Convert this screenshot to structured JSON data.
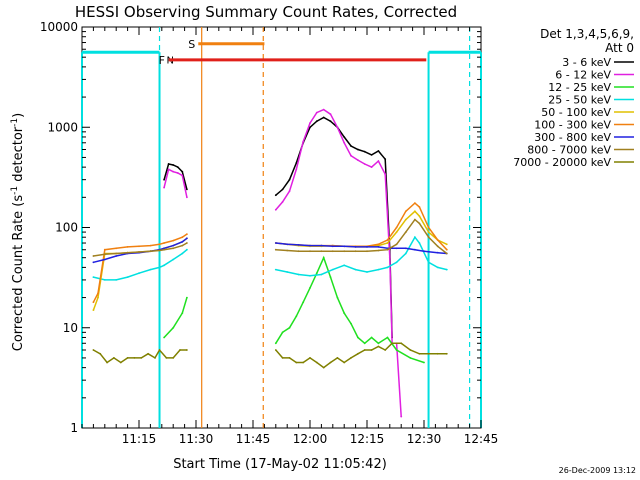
{
  "chart_data": {
    "type": "line",
    "title": "HESSI Observing Summary Count Rates, Corrected",
    "xlabel": "Start Time (17-May-02 11:05:42)",
    "ylabel": "Corrected Count Rate (s⁻¹ detector⁻¹)",
    "ylabel_main": "Corrected Count Rate (s",
    "ylabel_sup1": "-1",
    "ylabel_mid": " detector",
    "ylabel_sup2": "-1",
    "ylabel_end": ")",
    "y_scale": "log",
    "ylim": [
      1,
      10000
    ],
    "xlim_minutes": [
      11.0,
      12.75
    ],
    "x_ticks": [
      {
        "label": "11:15",
        "minutes": 11.25
      },
      {
        "label": "11:30",
        "minutes": 11.5
      },
      {
        "label": "11:45",
        "minutes": 11.75
      },
      {
        "label": "12:00",
        "minutes": 12.0
      },
      {
        "label": "12:15",
        "minutes": 12.25
      },
      {
        "label": "12:30",
        "minutes": 12.5
      },
      {
        "label": "12:45",
        "minutes": 12.75
      }
    ],
    "y_ticks": [
      {
        "label": "1",
        "value": 1
      },
      {
        "label": "10",
        "value": 10
      },
      {
        "label": "100",
        "value": 100
      },
      {
        "label": "1000",
        "value": 1000
      },
      {
        "label": "10000",
        "value": 10000
      }
    ],
    "legend_title_1": "Det 1,3,4,5,6,9,",
    "legend_title_2": "Att 0",
    "legend_position": "right",
    "timestamp": "26-Dec-2009 13:12",
    "flags": [
      {
        "label": "F",
        "color": "#e0201a",
        "x_start": 11.38,
        "x_end": 12.51,
        "level": 4700
      },
      {
        "label": "S",
        "color": "#f08010",
        "x_start": 11.51,
        "x_end": 11.8,
        "level": 6800
      }
    ],
    "flag_n": {
      "label": "N",
      "color": "#00e0e0"
    },
    "eclipse_segments": [
      {
        "x_start": 11.0,
        "x_end": 11.34,
        "level": 5600
      },
      {
        "x_start": 12.52,
        "x_end": 12.75,
        "level": 5600
      }
    ],
    "markers": [
      {
        "type": "cyan-dashed",
        "x": 11.34
      },
      {
        "type": "cyan-dashed",
        "x": 12.7
      },
      {
        "type": "orange-solid",
        "x": 11.525
      },
      {
        "type": "orange-dashed",
        "x": 11.795
      }
    ],
    "series": [
      {
        "name": "3 - 6 keV",
        "color": "#000000",
        "points": [
          [
            11.36,
            300
          ],
          [
            11.38,
            430
          ],
          [
            11.4,
            420
          ],
          [
            11.42,
            400
          ],
          [
            11.44,
            360
          ],
          [
            11.46,
            240
          ],
          [
            11.85,
            210
          ],
          [
            11.88,
            240
          ],
          [
            11.91,
            300
          ],
          [
            11.94,
            440
          ],
          [
            11.97,
            700
          ],
          [
            12.0,
            1000
          ],
          [
            12.03,
            1150
          ],
          [
            12.06,
            1250
          ],
          [
            12.09,
            1150
          ],
          [
            12.12,
            1000
          ],
          [
            12.15,
            800
          ],
          [
            12.18,
            650
          ],
          [
            12.21,
            600
          ],
          [
            12.24,
            570
          ],
          [
            12.27,
            530
          ],
          [
            12.3,
            580
          ],
          [
            12.33,
            480
          ],
          [
            12.35,
            60
          ],
          [
            12.36,
            8
          ]
        ]
      },
      {
        "name": "6 - 12 keV",
        "color": "#e020e0",
        "points": [
          [
            11.36,
            250
          ],
          [
            11.38,
            380
          ],
          [
            11.4,
            360
          ],
          [
            11.42,
            350
          ],
          [
            11.44,
            330
          ],
          [
            11.46,
            200
          ],
          [
            11.85,
            150
          ],
          [
            11.88,
            180
          ],
          [
            11.91,
            230
          ],
          [
            11.94,
            380
          ],
          [
            11.97,
            720
          ],
          [
            12.0,
            1100
          ],
          [
            12.03,
            1400
          ],
          [
            12.06,
            1500
          ],
          [
            12.09,
            1350
          ],
          [
            12.12,
            1000
          ],
          [
            12.15,
            700
          ],
          [
            12.18,
            520
          ],
          [
            12.21,
            470
          ],
          [
            12.24,
            430
          ],
          [
            12.27,
            400
          ],
          [
            12.3,
            460
          ],
          [
            12.33,
            340
          ],
          [
            12.35,
            50
          ],
          [
            12.36,
            7
          ],
          [
            12.38,
            7
          ],
          [
            12.4,
            1.3
          ]
        ]
      },
      {
        "name": "12 - 25 keV",
        "color": "#20e020",
        "points": [
          [
            11.36,
            8
          ],
          [
            11.4,
            10
          ],
          [
            11.44,
            14
          ],
          [
            11.46,
            20
          ],
          [
            11.85,
            7
          ],
          [
            11.88,
            9
          ],
          [
            11.91,
            10
          ],
          [
            11.94,
            13
          ],
          [
            11.97,
            18
          ],
          [
            12.0,
            25
          ],
          [
            12.03,
            35
          ],
          [
            12.06,
            50
          ],
          [
            12.09,
            32
          ],
          [
            12.12,
            20
          ],
          [
            12.15,
            14
          ],
          [
            12.18,
            11
          ],
          [
            12.21,
            8
          ],
          [
            12.24,
            7
          ],
          [
            12.27,
            8
          ],
          [
            12.3,
            7
          ],
          [
            12.34,
            8
          ],
          [
            12.38,
            6
          ],
          [
            12.44,
            5
          ],
          [
            12.5,
            4.5
          ]
        ]
      },
      {
        "name": "25 - 50 keV",
        "color": "#00e0e0",
        "points": [
          [
            11.05,
            32
          ],
          [
            11.1,
            30
          ],
          [
            11.15,
            30
          ],
          [
            11.2,
            32
          ],
          [
            11.25,
            35
          ],
          [
            11.3,
            38
          ],
          [
            11.34,
            40
          ],
          [
            11.36,
            42
          ],
          [
            11.4,
            48
          ],
          [
            11.44,
            55
          ],
          [
            11.46,
            60
          ],
          [
            11.85,
            38
          ],
          [
            11.9,
            36
          ],
          [
            11.95,
            34
          ],
          [
            12.0,
            33
          ],
          [
            12.05,
            34
          ],
          [
            12.1,
            38
          ],
          [
            12.15,
            42
          ],
          [
            12.2,
            38
          ],
          [
            12.25,
            36
          ],
          [
            12.3,
            38
          ],
          [
            12.34,
            40
          ],
          [
            12.38,
            45
          ],
          [
            12.42,
            55
          ],
          [
            12.46,
            80
          ],
          [
            12.48,
            70
          ],
          [
            12.52,
            45
          ],
          [
            12.56,
            40
          ],
          [
            12.6,
            38
          ]
        ]
      },
      {
        "name": "50 - 100 keV",
        "color": "#e0c000",
        "points": [
          [
            11.05,
            15
          ],
          [
            11.07,
            20
          ],
          [
            11.1,
            55
          ],
          [
            11.15,
            55
          ],
          [
            11.2,
            56
          ],
          [
            11.25,
            57
          ],
          [
            11.3,
            58
          ],
          [
            11.34,
            60
          ],
          [
            11.36,
            62
          ],
          [
            11.4,
            66
          ],
          [
            11.44,
            72
          ],
          [
            11.46,
            78
          ],
          [
            11.85,
            70
          ],
          [
            11.9,
            68
          ],
          [
            11.95,
            66
          ],
          [
            12.0,
            65
          ],
          [
            12.05,
            65
          ],
          [
            12.1,
            66
          ],
          [
            12.15,
            65
          ],
          [
            12.2,
            64
          ],
          [
            12.25,
            64
          ],
          [
            12.3,
            66
          ],
          [
            12.34,
            70
          ],
          [
            12.38,
            90
          ],
          [
            12.42,
            120
          ],
          [
            12.46,
            145
          ],
          [
            12.48,
            130
          ],
          [
            12.52,
            90
          ],
          [
            12.56,
            75
          ],
          [
            12.6,
            68
          ]
        ]
      },
      {
        "name": "100 - 300 keV",
        "color": "#f08010",
        "points": [
          [
            11.05,
            18
          ],
          [
            11.07,
            22
          ],
          [
            11.1,
            60
          ],
          [
            11.15,
            62
          ],
          [
            11.2,
            64
          ],
          [
            11.25,
            65
          ],
          [
            11.3,
            66
          ],
          [
            11.34,
            68
          ],
          [
            11.36,
            70
          ],
          [
            11.4,
            74
          ],
          [
            11.44,
            80
          ],
          [
            11.46,
            86
          ],
          [
            11.85,
            70
          ],
          [
            11.9,
            68
          ],
          [
            11.95,
            67
          ],
          [
            12.0,
            66
          ],
          [
            12.05,
            66
          ],
          [
            12.1,
            66
          ],
          [
            12.15,
            65
          ],
          [
            12.2,
            65
          ],
          [
            12.25,
            65
          ],
          [
            12.3,
            68
          ],
          [
            12.34,
            75
          ],
          [
            12.38,
            100
          ],
          [
            12.42,
            145
          ],
          [
            12.46,
            175
          ],
          [
            12.48,
            160
          ],
          [
            12.52,
            100
          ],
          [
            12.56,
            75
          ],
          [
            12.6,
            60
          ]
        ]
      },
      {
        "name": "300 - 800 keV",
        "color": "#2020e0",
        "points": [
          [
            11.05,
            45
          ],
          [
            11.1,
            48
          ],
          [
            11.15,
            52
          ],
          [
            11.2,
            55
          ],
          [
            11.25,
            56
          ],
          [
            11.3,
            58
          ],
          [
            11.34,
            60
          ],
          [
            11.36,
            62
          ],
          [
            11.4,
            66
          ],
          [
            11.44,
            72
          ],
          [
            11.46,
            78
          ],
          [
            11.85,
            70
          ],
          [
            11.9,
            68
          ],
          [
            11.95,
            67
          ],
          [
            12.0,
            66
          ],
          [
            12.05,
            66
          ],
          [
            12.1,
            65
          ],
          [
            12.15,
            65
          ],
          [
            12.2,
            64
          ],
          [
            12.25,
            64
          ],
          [
            12.3,
            64
          ],
          [
            12.34,
            62
          ],
          [
            12.38,
            62
          ],
          [
            12.42,
            62
          ],
          [
            12.46,
            60
          ],
          [
            12.5,
            58
          ],
          [
            12.56,
            56
          ],
          [
            12.6,
            55
          ]
        ]
      },
      {
        "name": "800 - 7000 keV",
        "color": "#a08020",
        "points": [
          [
            11.05,
            52
          ],
          [
            11.1,
            54
          ],
          [
            11.15,
            55
          ],
          [
            11.2,
            56
          ],
          [
            11.25,
            57
          ],
          [
            11.3,
            58
          ],
          [
            11.34,
            59
          ],
          [
            11.36,
            60
          ],
          [
            11.4,
            62
          ],
          [
            11.44,
            66
          ],
          [
            11.46,
            70
          ],
          [
            11.85,
            60
          ],
          [
            11.9,
            59
          ],
          [
            11.95,
            58
          ],
          [
            12.0,
            58
          ],
          [
            12.05,
            58
          ],
          [
            12.1,
            58
          ],
          [
            12.15,
            58
          ],
          [
            12.2,
            58
          ],
          [
            12.25,
            58
          ],
          [
            12.3,
            59
          ],
          [
            12.34,
            60
          ],
          [
            12.38,
            68
          ],
          [
            12.42,
            90
          ],
          [
            12.46,
            120
          ],
          [
            12.48,
            110
          ],
          [
            12.52,
            80
          ],
          [
            12.56,
            65
          ],
          [
            12.6,
            55
          ]
        ]
      },
      {
        "name": "7000 - 20000 keV",
        "color": "#808000",
        "points": [
          [
            11.05,
            6
          ],
          [
            11.08,
            5.5
          ],
          [
            11.11,
            4.5
          ],
          [
            11.14,
            5
          ],
          [
            11.17,
            4.5
          ],
          [
            11.2,
            5
          ],
          [
            11.23,
            5
          ],
          [
            11.26,
            5
          ],
          [
            11.29,
            5.5
          ],
          [
            11.32,
            5
          ],
          [
            11.34,
            6
          ],
          [
            11.37,
            5
          ],
          [
            11.4,
            5
          ],
          [
            11.43,
            6
          ],
          [
            11.46,
            6
          ],
          [
            11.85,
            6
          ],
          [
            11.88,
            5
          ],
          [
            11.91,
            5
          ],
          [
            11.94,
            4.5
          ],
          [
            11.97,
            4.5
          ],
          [
            12.0,
            5
          ],
          [
            12.03,
            4.5
          ],
          [
            12.06,
            4
          ],
          [
            12.09,
            4.5
          ],
          [
            12.12,
            5
          ],
          [
            12.15,
            4.5
          ],
          [
            12.18,
            5
          ],
          [
            12.21,
            5.5
          ],
          [
            12.24,
            6
          ],
          [
            12.27,
            6
          ],
          [
            12.3,
            6.5
          ],
          [
            12.33,
            6
          ],
          [
            12.36,
            7
          ],
          [
            12.4,
            7
          ],
          [
            12.44,
            6
          ],
          [
            12.48,
            5.5
          ],
          [
            12.52,
            5.5
          ],
          [
            12.56,
            5.5
          ],
          [
            12.6,
            5.5
          ]
        ]
      }
    ]
  }
}
